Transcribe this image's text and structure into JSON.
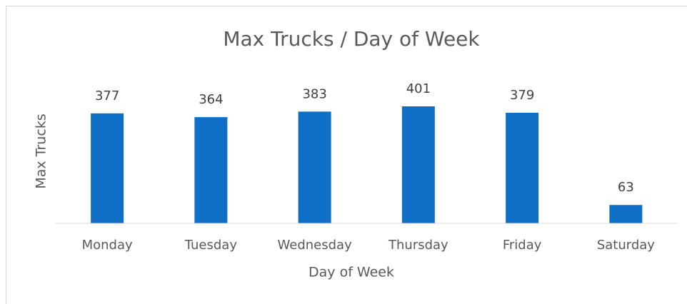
{
  "chart_data": {
    "type": "bar",
    "title": "Max Trucks / Day of Week",
    "x_label": "Day of Week",
    "y_label": "Max Trucks",
    "categories": [
      "Monday",
      "Tuesday",
      "Wednesday",
      "Thursday",
      "Friday",
      "Saturday"
    ],
    "values": [
      377,
      364,
      383,
      401,
      379,
      63
    ],
    "color": "#0f6fc6",
    "ylim": [
      0,
      450
    ]
  }
}
